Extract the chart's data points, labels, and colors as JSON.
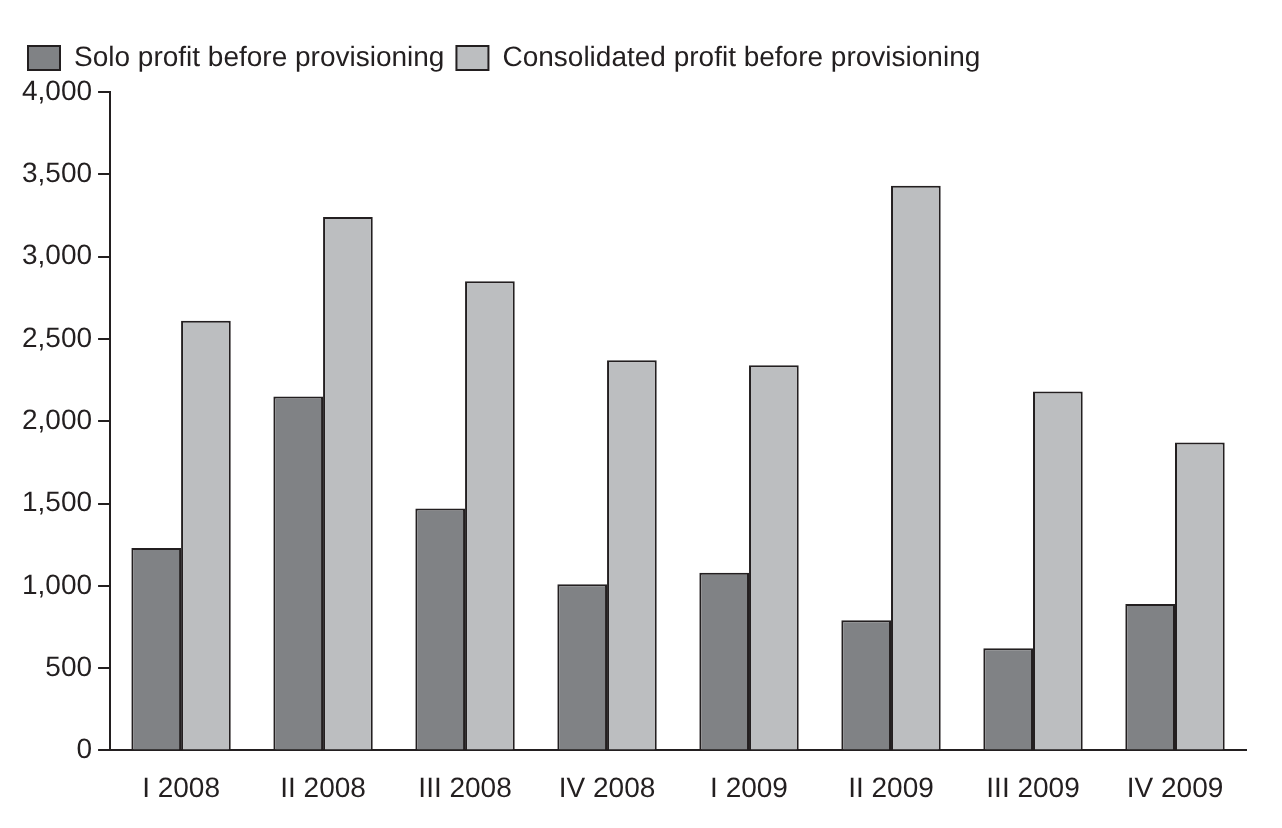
{
  "chart_data": {
    "type": "bar",
    "categories": [
      "I 2008",
      "II 2008",
      "III 2008",
      "IV 2008",
      "I 2009",
      "II 2009",
      "III 2009",
      "IV 2009"
    ],
    "series": [
      {
        "name": "Solo profit before provisioning",
        "color": "#808285",
        "values": [
          1230,
          2150,
          1470,
          1010,
          1080,
          790,
          620,
          890
        ]
      },
      {
        "name": "Consolidated profit before provisioning",
        "color": "#bcbec0",
        "values": [
          2610,
          3240,
          2850,
          2370,
          2340,
          3430,
          2180,
          1870
        ]
      }
    ],
    "ylim": [
      0,
      4000
    ],
    "yticks": [
      {
        "value": 0,
        "label": "0"
      },
      {
        "value": 500,
        "label": "500"
      },
      {
        "value": 1000,
        "label": "1,000"
      },
      {
        "value": 1500,
        "label": "1,500"
      },
      {
        "value": 2000,
        "label": "2,000"
      },
      {
        "value": 2500,
        "label": "2,500"
      },
      {
        "value": 3000,
        "label": "3,000"
      },
      {
        "value": 3500,
        "label": "3,500"
      },
      {
        "value": 4000,
        "label": "4,000"
      }
    ],
    "grid": false,
    "legend": "top left"
  }
}
